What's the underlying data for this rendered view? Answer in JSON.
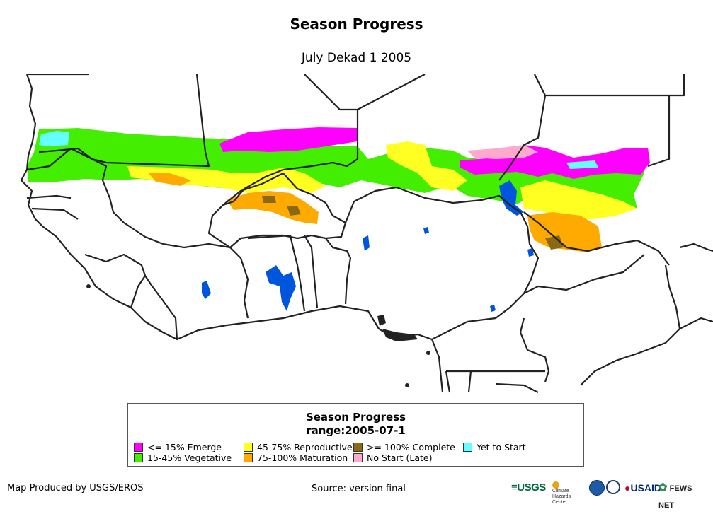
{
  "header": {
    "title": "Season Progress",
    "subtitle": "July Dekad 1 2005"
  },
  "legend": {
    "title_line1": "Season Progress",
    "title_line2": "range:2005-07-1",
    "items": [
      {
        "label": "<= 15% Emerge",
        "color": "#ff00ff"
      },
      {
        "label": "15-45% Vegetative",
        "color": "#44ee00"
      },
      {
        "label": "45-75% Reproductive",
        "color": "#ffff22"
      },
      {
        "label": "75-100% Maturation",
        "color": "#ffaa00"
      },
      {
        "label": ">= 100% Complete",
        "color": "#8b6914"
      },
      {
        "label": "No Start (Late)",
        "color": "#ffaacc"
      },
      {
        "label": "Yet to Start",
        "color": "#66ffff"
      }
    ]
  },
  "map": {
    "water_color": "#0055dd",
    "border_color": "#222222"
  },
  "footer": {
    "produced_by": "Map Produced by USGS/EROS",
    "source": "Source: version final",
    "logos": [
      {
        "text": "USGS",
        "icon": "usgs-logo"
      },
      {
        "text": "Climate Hazards Center",
        "icon": "chc-logo"
      },
      {
        "text": "NOAA",
        "icon": "noaa-logo"
      },
      {
        "text": "USAID",
        "icon": "usaid-logo"
      },
      {
        "text": "FEWS NET",
        "icon": "fewsnet-logo"
      }
    ]
  }
}
